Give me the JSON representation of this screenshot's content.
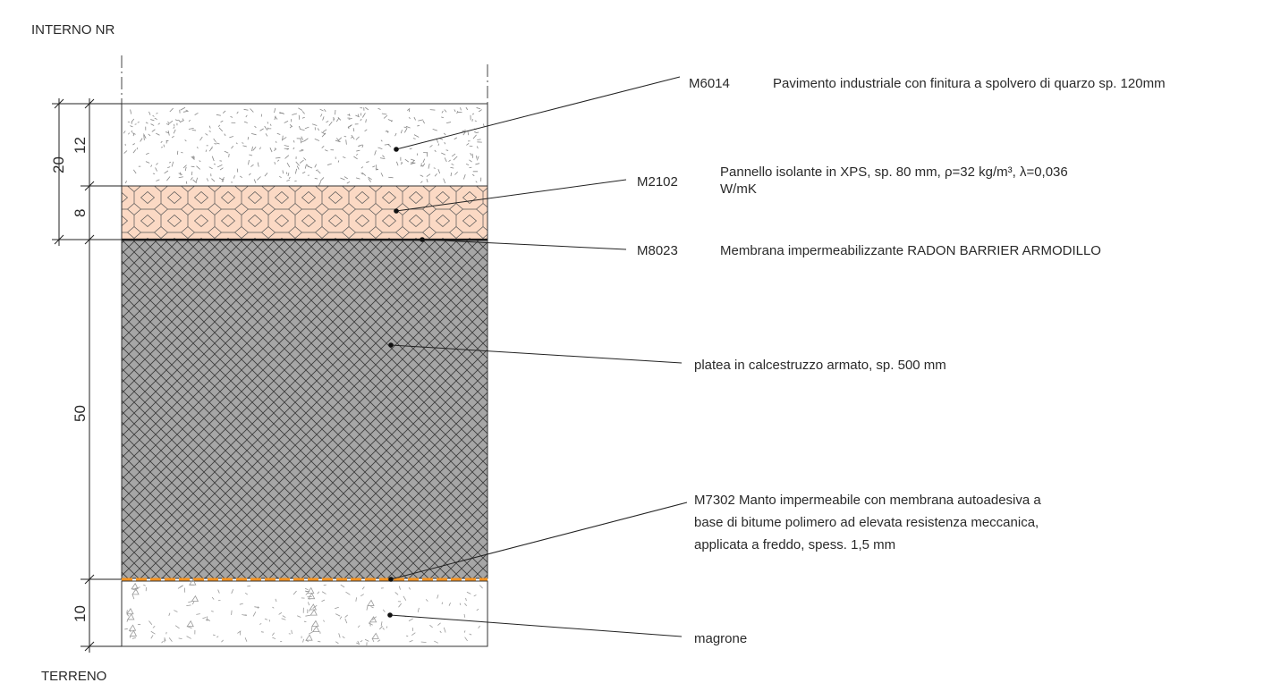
{
  "top_label": "INTERNO NR",
  "bottom_label": "TERRENO",
  "dimensions": {
    "total_top": "20",
    "d12": "12",
    "d8": "8",
    "d50": "50",
    "d10": "10"
  },
  "colors": {
    "insulation_fill": "#fbd9c4",
    "membrane_orange": "#f7931e",
    "concrete_fill": "#a6a6a6",
    "line": "#222222"
  },
  "annotations": {
    "m6014": {
      "code": "M6014",
      "text": "Pavimento industriale con finitura a spolvero di quarzo sp. 120mm"
    },
    "m2102": {
      "code": "M2102",
      "text_1": "Pannello isolante in XPS, sp. 80 mm, ρ=32 kg/m³, λ=0,036",
      "text_2": "W/mK"
    },
    "m8023": {
      "code": "M8023",
      "text": "Membrana impermeabilizzante RADON BARRIER ARMODILLO"
    },
    "platea": {
      "text": "platea in calcestruzzo armato, sp. 500 mm"
    },
    "m7302": {
      "line_1": "M7302 Manto impermeabile con membrana autoadesiva  a",
      "line_2": "base di bitume polimero ad elevata resistenza meccanica,",
      "line_3": "applicata a freddo, spess. 1,5 mm"
    },
    "magrone": {
      "text": "magrone"
    }
  }
}
